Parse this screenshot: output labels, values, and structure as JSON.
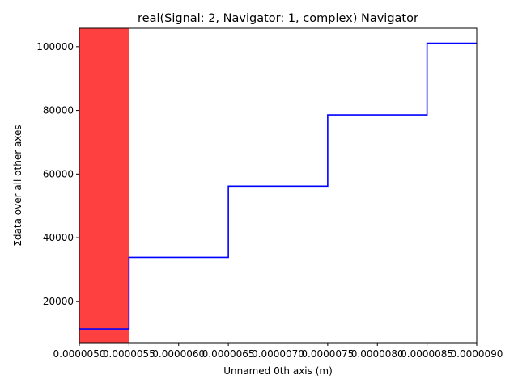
{
  "chart_data": {
    "type": "line",
    "drawstyle": "steps-post",
    "title": "real(Signal: 2, Navigator: 1, complex) Navigator",
    "xlabel": "Unnamed 0th axis (m)",
    "ylabel": "Σdata over all other axes",
    "xlim": [
      5e-06,
      9e-06
    ],
    "ylim": [
      7000,
      105800
    ],
    "x_tick_values": [
      5e-06,
      5.5e-06,
      6e-06,
      6.5e-06,
      7e-06,
      7.5e-06,
      8e-06,
      8.5e-06,
      9e-06
    ],
    "x_tick_labels": [
      "0.0000050",
      "0.0000055",
      "0.0000060",
      "0.0000065",
      "0.0000070",
      "0.0000075",
      "0.0000080",
      "0.0000085",
      "0.0000090"
    ],
    "y_ticks": [
      20000,
      40000,
      60000,
      80000,
      100000
    ],
    "y_tick_labels": [
      "20000",
      "40000",
      "60000",
      "80000",
      "100000"
    ],
    "grid": false,
    "series": [
      {
        "color": "#0000ff",
        "x": [
          5e-06,
          5.5e-06,
          6e-06,
          6.5e-06,
          7e-06,
          7.5e-06,
          8e-06,
          8.5e-06,
          9e-06
        ],
        "y": [
          11300,
          33800,
          33800,
          56200,
          56200,
          78600,
          78600,
          101100,
          101100
        ]
      }
    ],
    "highlight_span": {
      "x": [
        5e-06,
        5.5e-06
      ],
      "color": "#ff0000",
      "alpha": 0.75
    }
  }
}
